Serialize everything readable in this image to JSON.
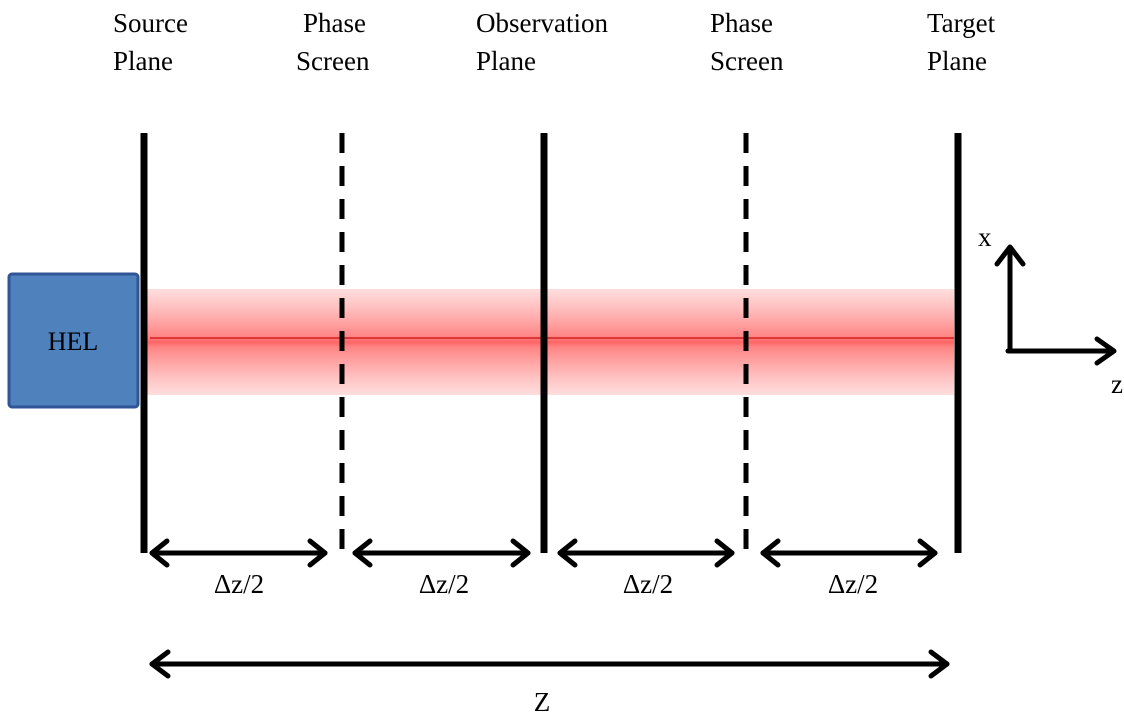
{
  "planes": [
    {
      "name": "source-plane",
      "line1": "Source",
      "line2": "Plane",
      "style": "solid"
    },
    {
      "name": "phase-screen-1",
      "line1": "Phase",
      "line2": "Screen",
      "style": "dashed"
    },
    {
      "name": "observation-plane",
      "line1": "Observation",
      "line2": "Plane",
      "style": "solid"
    },
    {
      "name": "phase-screen-2",
      "line1": "Phase",
      "line2": "Screen",
      "style": "dashed"
    },
    {
      "name": "target-plane",
      "line1": "Target",
      "line2": "Plane",
      "style": "solid"
    }
  ],
  "source": {
    "label": "HEL",
    "fill": "#4f81bd",
    "border": "#2f5597"
  },
  "beam": {
    "color": "#ff0000",
    "glow": "#ff6666"
  },
  "spacing_labels": [
    "Δz/2",
    "Δz/2",
    "Δz/2",
    "Δz/2"
  ],
  "total_length_label": "Z",
  "axes": {
    "x_label": "x",
    "z_label": "z"
  }
}
